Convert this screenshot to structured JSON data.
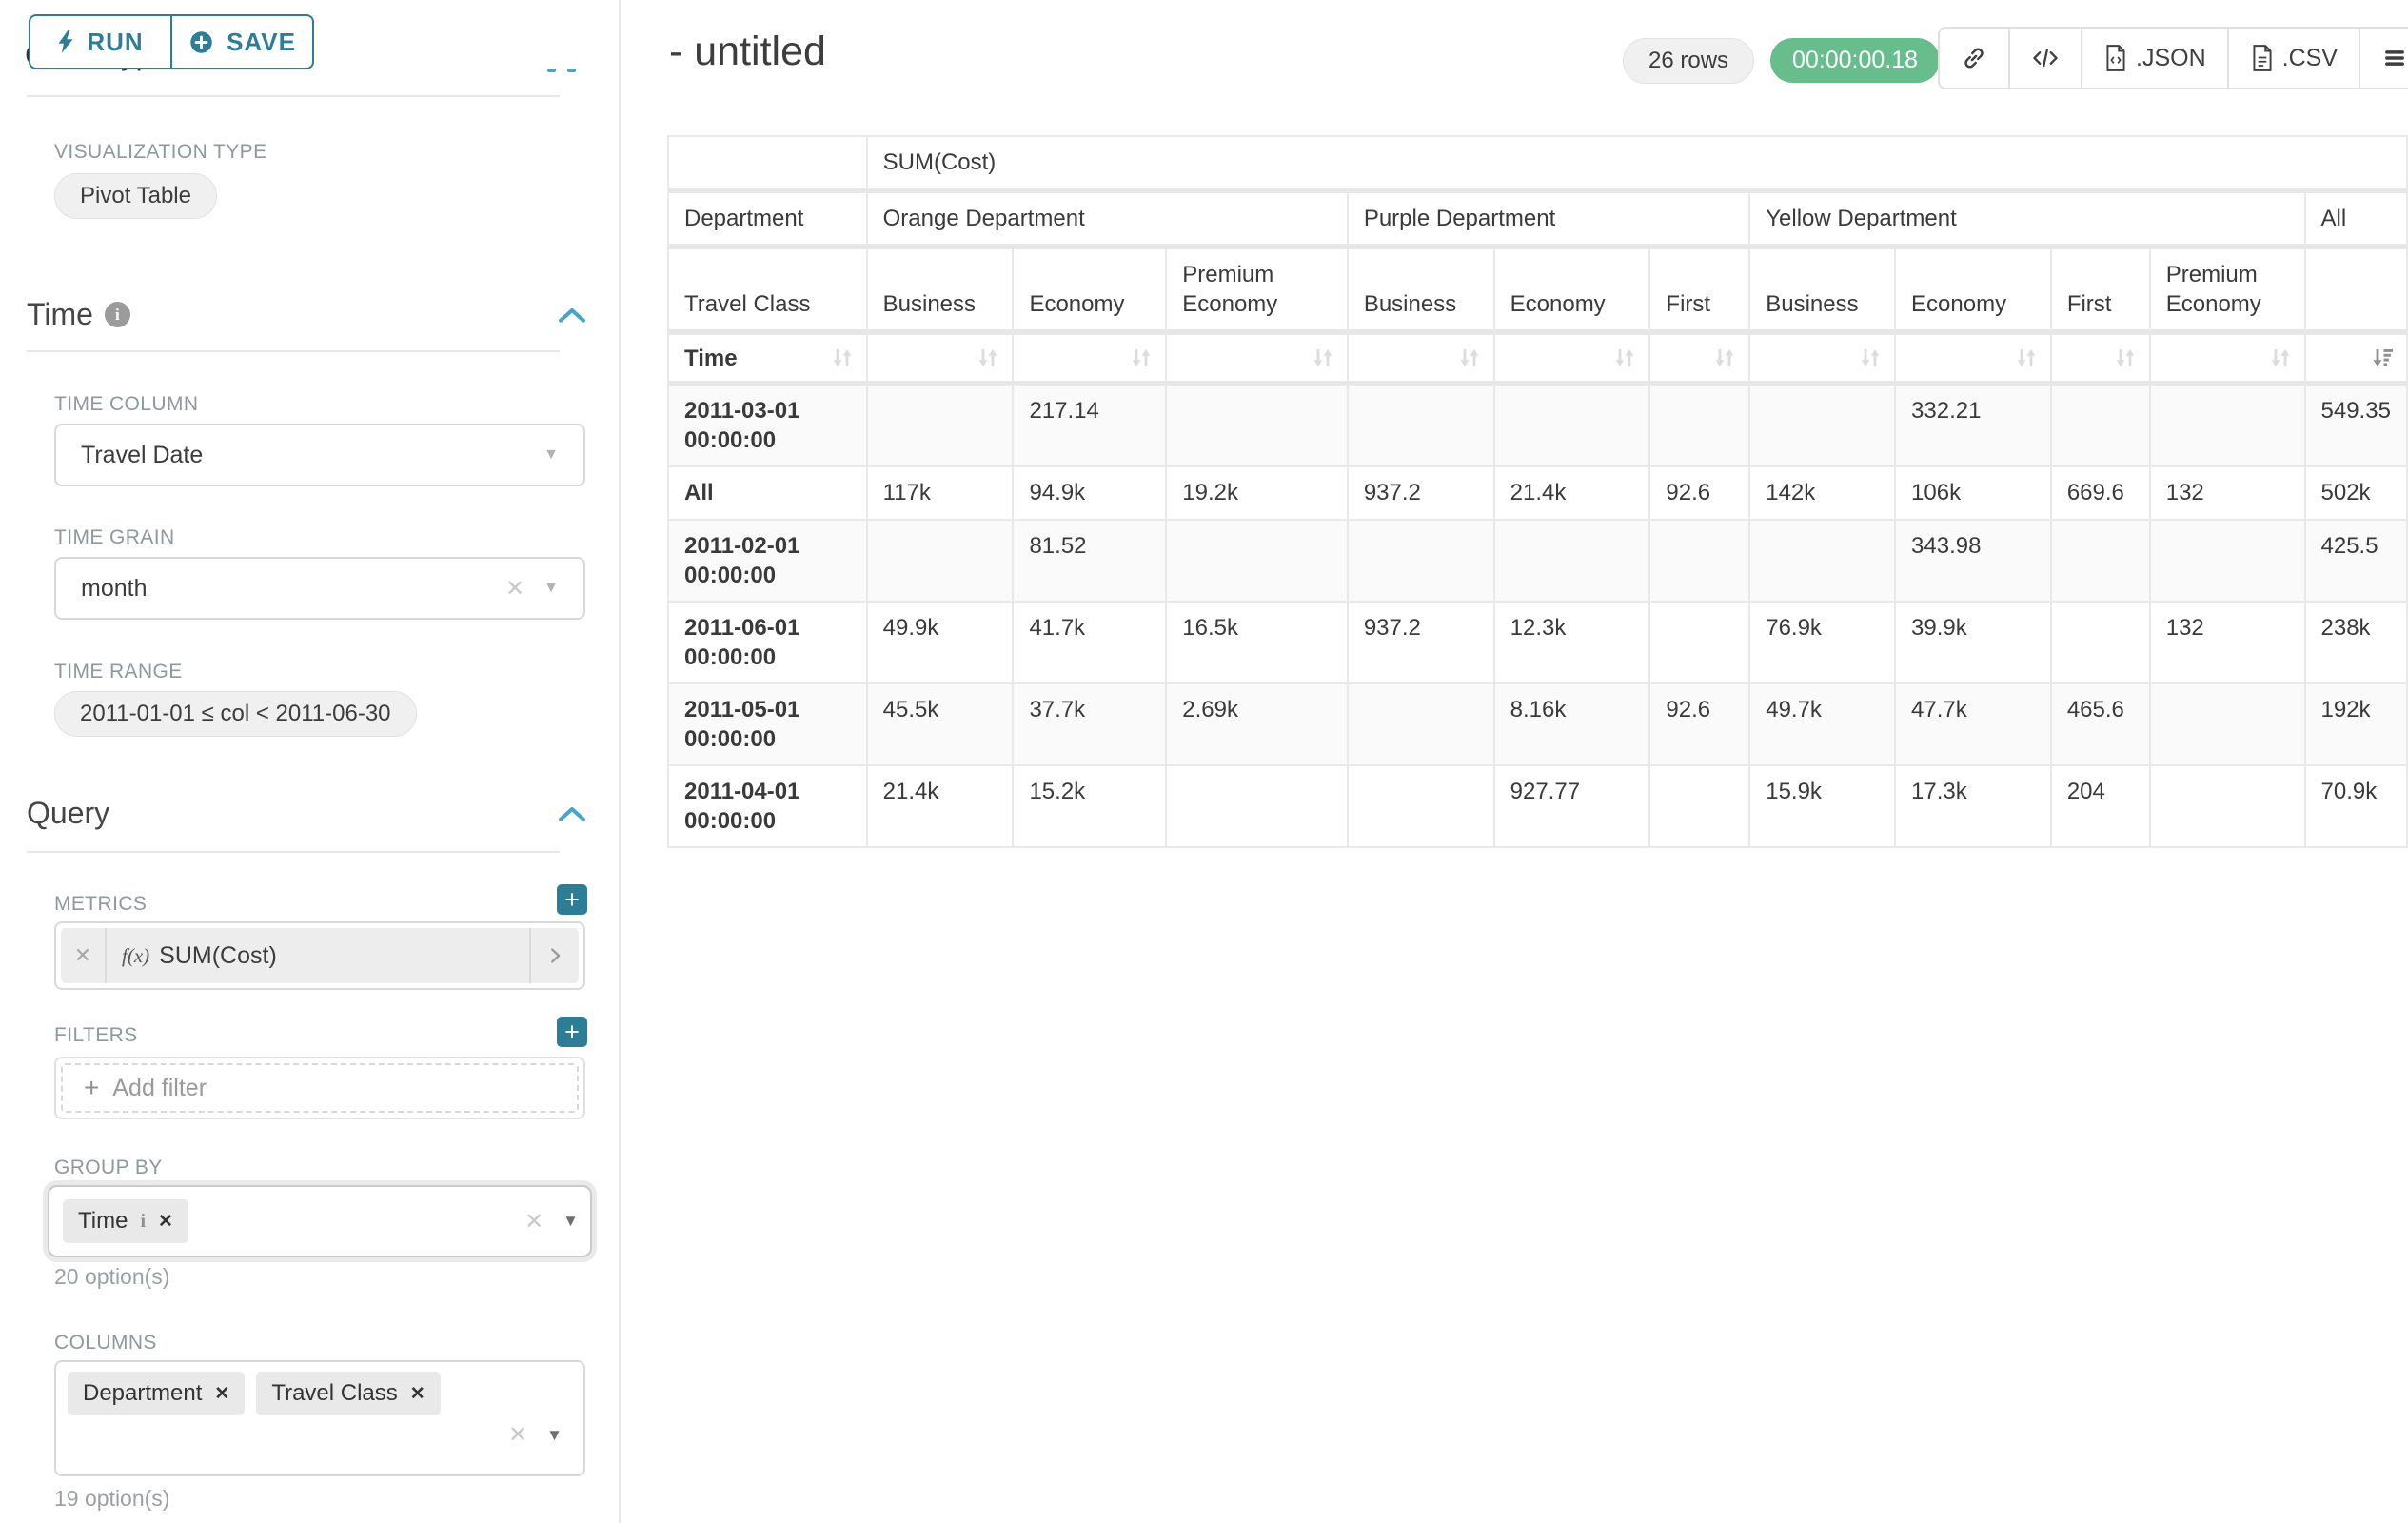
{
  "panel": {
    "run_label": "RUN",
    "save_label": "SAVE",
    "chart_type_heading": "Chart Type",
    "viz_type_label": "VISUALIZATION TYPE",
    "viz_type_value": "Pivot Table",
    "time_section_title": "Time",
    "time_column_label": "TIME COLUMN",
    "time_column_value": "Travel Date",
    "time_grain_label": "TIME GRAIN",
    "time_grain_value": "month",
    "time_range_label": "TIME RANGE",
    "time_range_value": "2011-01-01 ≤ col < 2011-06-30",
    "query_section_title": "Query",
    "metrics_label": "METRICS",
    "metric_fx": "f(x)",
    "metric_value": "SUM(Cost)",
    "filters_label": "FILTERS",
    "add_filter_placeholder": "Add filter",
    "group_by_label": "GROUP BY",
    "group_by_value": "Time",
    "group_by_options_hint": "20 option(s)",
    "columns_label": "COLUMNS",
    "columns_values": [
      "Department",
      "Travel Class"
    ],
    "columns_options_hint": "19 option(s)"
  },
  "header": {
    "title": "- untitled",
    "rows_badge": "26 rows",
    "timer": "00:00:00.18",
    "export_json_label": ".JSON",
    "export_csv_label": ".CSV"
  },
  "colors": {
    "accent_teal": "#2d7d96",
    "chevron_blue": "#45a5cc",
    "timer_green": "#68bd8d",
    "badge_gray": "#f0f0f0",
    "table_border": "#e9e9e9"
  },
  "table": {
    "metric_header": "SUM(Cost)",
    "row2_corner": "Department",
    "row3_corner": "Travel Class",
    "sort_corner": "Time",
    "col_groups": [
      {
        "label": "Orange Department",
        "cols": [
          "Business",
          "Economy",
          "Premium Economy"
        ]
      },
      {
        "label": "Purple Department",
        "cols": [
          "Business",
          "Economy",
          "First"
        ]
      },
      {
        "label": "Yellow Department",
        "cols": [
          "Business",
          "Economy",
          "First",
          "Premium Economy"
        ]
      },
      {
        "label": "All",
        "cols": [
          ""
        ]
      }
    ],
    "sorted_column_index": 10,
    "rows": [
      {
        "time": "2011-03-01 00:00:00",
        "values": [
          "",
          "217.14",
          "",
          "",
          "",
          "",
          "",
          "332.21",
          "",
          "",
          "549.35"
        ]
      },
      {
        "time": "All",
        "values": [
          "117k",
          "94.9k",
          "19.2k",
          "937.2",
          "21.4k",
          "92.6",
          "142k",
          "106k",
          "669.6",
          "132",
          "502k"
        ]
      },
      {
        "time": "2011-02-01 00:00:00",
        "values": [
          "",
          "81.52",
          "",
          "",
          "",
          "",
          "",
          "343.98",
          "",
          "",
          "425.5"
        ]
      },
      {
        "time": "2011-06-01 00:00:00",
        "values": [
          "49.9k",
          "41.7k",
          "16.5k",
          "937.2",
          "12.3k",
          "",
          "76.9k",
          "39.9k",
          "",
          "132",
          "238k"
        ]
      },
      {
        "time": "2011-05-01 00:00:00",
        "values": [
          "45.5k",
          "37.7k",
          "2.69k",
          "",
          "8.16k",
          "92.6",
          "49.7k",
          "47.7k",
          "465.6",
          "",
          "192k"
        ]
      },
      {
        "time": "2011-04-01 00:00:00",
        "values": [
          "21.4k",
          "15.2k",
          "",
          "",
          "927.77",
          "",
          "15.9k",
          "17.3k",
          "204",
          "",
          "70.9k"
        ]
      }
    ]
  }
}
